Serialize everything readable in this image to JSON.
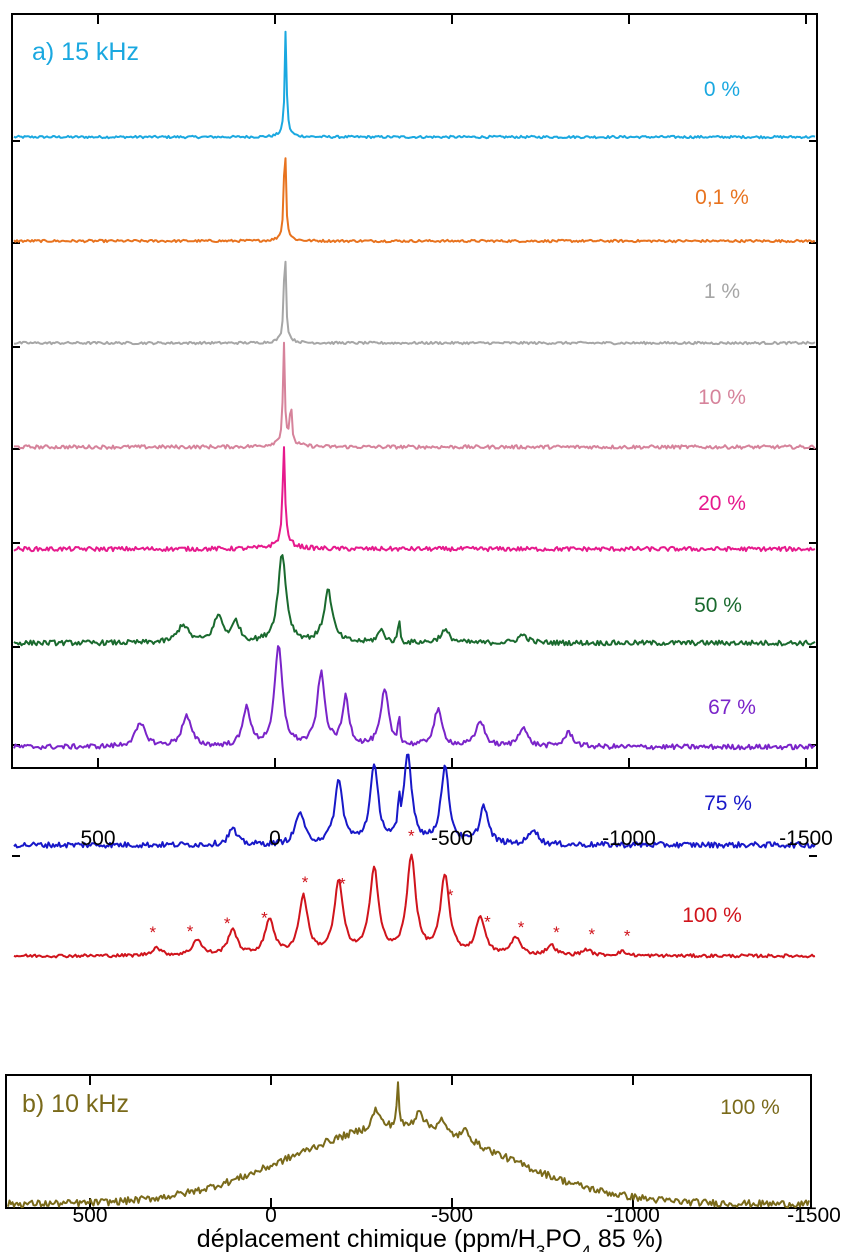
{
  "chart_data": [
    {
      "type": "line",
      "title": "a) 15 kHz",
      "title_color": "#1aa8e0",
      "xlabel": "",
      "ylabel": "",
      "xlim": [
        700,
        -1500
      ],
      "x_ticks": [
        500,
        0,
        -500,
        -1000,
        -1500
      ],
      "x_tick_labels": [
        "500",
        "0",
        "-500",
        "-1000",
        "-1500"
      ],
      "x_reversed": true,
      "series": [
        {
          "name": "0 %",
          "color": "#1aa8e0",
          "peaks": [
            {
              "x": -30,
              "h": 100,
              "w": 3
            }
          ],
          "wings": 14,
          "noise": 1.2
        },
        {
          "name": "0,1 %",
          "color": "#e8731f",
          "peaks": [
            {
              "x": -28,
              "h": 102,
              "w": 3
            }
          ],
          "wings": 14,
          "noise": 1.2
        },
        {
          "name": "1 %",
          "color": "#a6a6a6",
          "peaks": [
            {
              "x": -28,
              "h": 100,
              "w": 3
            }
          ],
          "wings": 16,
          "noise": 1.2
        },
        {
          "name": "10 %",
          "color": "#d6839b",
          "peaks": [
            {
              "x": -25,
              "h": 100,
              "w": 3
            },
            {
              "x": -45,
              "h": 42,
              "w": 3
            }
          ],
          "wings": 30,
          "noise": 1.8
        },
        {
          "name": "20 %",
          "color": "#e61a8d",
          "peaks": [
            {
              "x": -25,
              "h": 98,
              "w": 4
            }
          ],
          "wings": 35,
          "noise": 2.2
        },
        {
          "name": "50 %",
          "color": "#1a6a2e",
          "peaks": [
            {
              "x": 260,
              "h": 18,
              "w": 18
            },
            {
              "x": 160,
              "h": 26,
              "w": 16
            },
            {
              "x": 110,
              "h": 20,
              "w": 12
            },
            {
              "x": -20,
              "h": 88,
              "w": 14
            },
            {
              "x": -150,
              "h": 52,
              "w": 14
            },
            {
              "x": -300,
              "h": 12,
              "w": 12
            },
            {
              "x": -350,
              "h": 38,
              "w": 2
            },
            {
              "x": -480,
              "h": 12,
              "w": 16
            },
            {
              "x": -700,
              "h": 8,
              "w": 16
            }
          ],
          "wings": 0,
          "noise": 2.5
        },
        {
          "name": "67 %",
          "color": "#7a24c9",
          "peaks": [
            {
              "x": 380,
              "h": 22,
              "w": 18
            },
            {
              "x": 250,
              "h": 30,
              "w": 16
            },
            {
              "x": 80,
              "h": 40,
              "w": 12
            },
            {
              "x": -10,
              "h": 100,
              "w": 13
            },
            {
              "x": -130,
              "h": 72,
              "w": 13
            },
            {
              "x": -200,
              "h": 48,
              "w": 11
            },
            {
              "x": -310,
              "h": 56,
              "w": 13
            },
            {
              "x": -350,
              "h": 45,
              "w": 2
            },
            {
              "x": -460,
              "h": 36,
              "w": 14
            },
            {
              "x": -580,
              "h": 26,
              "w": 14
            },
            {
              "x": -700,
              "h": 20,
              "w": 14
            },
            {
              "x": -830,
              "h": 14,
              "w": 15
            }
          ],
          "wings": 0,
          "noise": 2.5
        },
        {
          "name": "75 %",
          "color": "#1818c8",
          "peaks": [
            {
              "x": 120,
              "h": 16,
              "w": 14
            },
            {
              "x": -70,
              "h": 32,
              "w": 14
            },
            {
              "x": -180,
              "h": 62,
              "w": 14
            },
            {
              "x": -280,
              "h": 76,
              "w": 14
            },
            {
              "x": -350,
              "h": 40,
              "w": 2
            },
            {
              "x": -375,
              "h": 88,
              "w": 14
            },
            {
              "x": -480,
              "h": 76,
              "w": 14
            },
            {
              "x": -590,
              "h": 38,
              "w": 14
            },
            {
              "x": -730,
              "h": 16,
              "w": 14
            }
          ],
          "wings": 0,
          "noise": 2.8
        },
        {
          "name": "100 %",
          "color": "#d0141c",
          "peaks": [
            {
              "x": 335,
              "h": 8,
              "w": 15
            },
            {
              "x": 220,
              "h": 16,
              "w": 15
            },
            {
              "x": 120,
              "h": 26,
              "w": 15
            },
            {
              "x": 15,
              "h": 36,
              "w": 15
            },
            {
              "x": -80,
              "h": 58,
              "w": 15
            },
            {
              "x": -180,
              "h": 72,
              "w": 15
            },
            {
              "x": -280,
              "h": 86,
              "w": 15
            },
            {
              "x": -385,
              "h": 98,
              "w": 15
            },
            {
              "x": -480,
              "h": 78,
              "w": 15
            },
            {
              "x": -580,
              "h": 38,
              "w": 15
            },
            {
              "x": -680,
              "h": 18,
              "w": 15
            },
            {
              "x": -780,
              "h": 10,
              "w": 15
            },
            {
              "x": -880,
              "h": 6,
              "w": 15
            },
            {
              "x": -980,
              "h": 4,
              "w": 15
            }
          ],
          "wings": 0,
          "noise": 1.6,
          "asterisks": [
            345,
            240,
            135,
            30,
            -85,
            -190,
            -385,
            -495,
            -600,
            -695,
            -795,
            -895,
            -995
          ]
        }
      ]
    },
    {
      "type": "line",
      "title": "b) 10 kHz",
      "title_color": "#7a6a1a",
      "xlabel": "déplacement chimique (ppm/H",
      "xlabel_sub1": "3",
      "xlabel_mid": "PO",
      "xlabel_sub2": "4",
      "xlabel_end": " 85 %)",
      "xlim": [
        700,
        -1500
      ],
      "x_ticks": [
        500,
        0,
        -500,
        -1000,
        -1500
      ],
      "x_tick_labels": [
        "500",
        "0",
        "-500",
        "-1000",
        "-1500"
      ],
      "x_reversed": true,
      "series": [
        {
          "name": "100 %",
          "color": "#7a6a1a",
          "peaks": [
            {
              "x": -350,
              "h": 30,
              "w": 3
            },
            {
              "x": -290,
              "h": 12,
              "w": 12
            },
            {
              "x": -410,
              "h": 12,
              "w": 12
            },
            {
              "x": -470,
              "h": 8,
              "w": 12
            },
            {
              "x": -540,
              "h": 7,
              "w": 12
            }
          ],
          "broad": {
            "x": -350,
            "h": 48,
            "w": 420
          },
          "wings": 0,
          "noise": 2.2
        }
      ]
    }
  ]
}
